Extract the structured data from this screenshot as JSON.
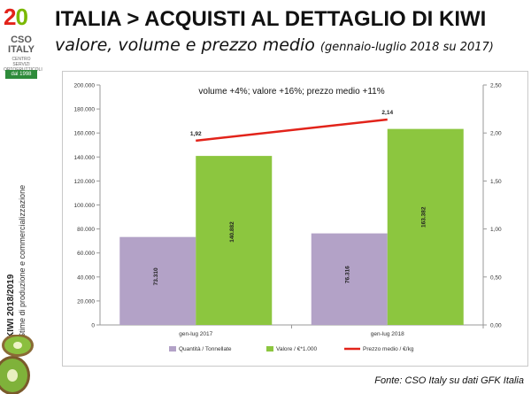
{
  "brand": {
    "logo_digit_a": "2",
    "logo_digit_b": "0",
    "logo_name_a": "CSO",
    "logo_name_b": "ITALY",
    "logo_tagline": "CENTRO SERVIZI ORTOFRUTTICOLI",
    "logo_since": "dal 1998",
    "side_title": "KIWI 2018/2019",
    "side_subtitle": "Stime di produzione e commercializzazione",
    "colors": {
      "red": "#e2231a",
      "green": "#7ab800",
      "band": "#2e8b3a"
    }
  },
  "header": {
    "title": "ITALIA > ACQUISTI AL DETTAGLIO DI KIWI",
    "subtitle": "valore, volume e prezzo medio",
    "subtitle_period": "(gennaio-luglio 2018 su 2017)"
  },
  "chart_data": {
    "type": "bar",
    "annotation": "volume +4%; valore +16%; prezzo medio +11%",
    "categories": [
      "gen-lug 2017",
      "gen-lug 2018"
    ],
    "series": [
      {
        "name": "Quantità / Tonnellate",
        "type": "bar",
        "axis": "left",
        "color": "#b3a2c7",
        "values": [
          73310,
          76316
        ],
        "labels": [
          "73.310",
          "76.316"
        ]
      },
      {
        "name": "Valore / €*1.000",
        "type": "bar",
        "axis": "left",
        "color": "#8cc63f",
        "values": [
          140882,
          163382
        ],
        "labels": [
          "140.882",
          "163.382"
        ]
      },
      {
        "name": "Prezzo medio / €/kg",
        "type": "line",
        "axis": "right",
        "color": "#e2231a",
        "values": [
          1.92,
          2.14
        ],
        "labels": [
          "1,92",
          "2,14"
        ]
      }
    ],
    "y_left": {
      "min": 0,
      "max": 200000,
      "ticks": [
        "0",
        "20.000",
        "40.000",
        "60.000",
        "80.000",
        "100.000",
        "120.000",
        "140.000",
        "160.000",
        "180.000",
        "200.000"
      ]
    },
    "y_right": {
      "min": 0,
      "max": 2.5,
      "ticks": [
        "0,00",
        "0,50",
        "1,00",
        "1,50",
        "2,00",
        "2,50"
      ]
    },
    "grid": false,
    "legend_position": "bottom"
  },
  "footer": {
    "source": "Fonte: CSO Italy su dati GFK Italia"
  }
}
